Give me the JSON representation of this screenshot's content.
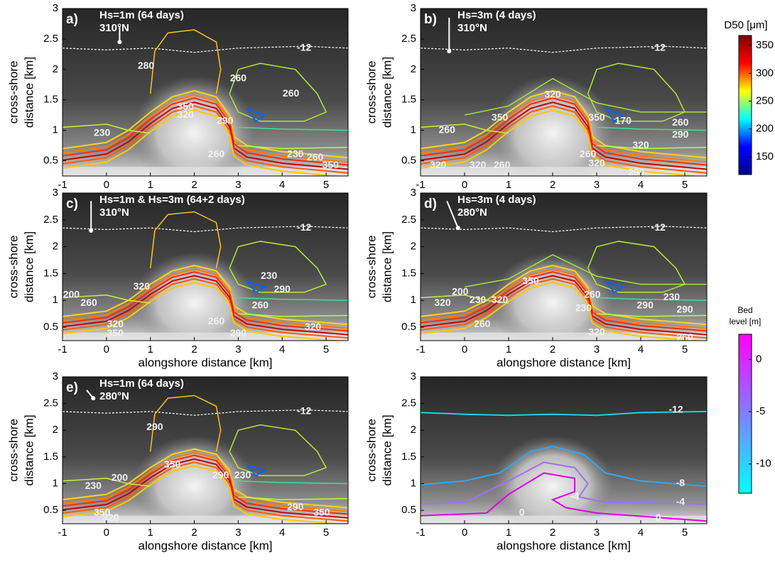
{
  "chart_data": {
    "type": "contour",
    "panels": [
      {
        "label": "a)",
        "title_lines": [
          "Hs=1m (64 days)",
          "310°N"
        ],
        "xlabel": "alongshore distance [km]",
        "ylabel": [
          "cross-shore",
          "distance [km]"
        ],
        "xlim": [
          -1,
          5.5
        ],
        "ylim": [
          0.25,
          3
        ],
        "xticks": [
          -1,
          0,
          1,
          2,
          3,
          4,
          5
        ],
        "yticks": [
          0.5,
          1,
          1.5,
          2,
          2.5,
          3
        ],
        "contour_labels": [
          -12,
          280,
          260,
          260,
          350,
          320,
          290,
          230,
          260,
          230,
          260,
          350
        ]
      },
      {
        "label": "b)",
        "title_lines": [
          "Hs=3m (4 days)",
          "310°N"
        ],
        "xlabel": "alongshore distance [km]",
        "ylabel": [
          "cross-shore",
          "distance [km]"
        ],
        "xlim": [
          -1,
          5.5
        ],
        "ylim": [
          0.25,
          3
        ],
        "xticks": [
          -1,
          0,
          1,
          2,
          3,
          4,
          5
        ],
        "yticks": [
          0.5,
          1,
          1.5,
          2,
          2.5,
          3
        ],
        "contour_labels": [
          -12,
          320,
          350,
          350,
          170,
          260,
          260,
          320,
          320,
          260,
          260,
          320,
          320,
          290,
          290
        ]
      },
      {
        "label": "c)",
        "title_lines": [
          "Hs=1m & Hs=3m (64+2 days)",
          "310°N"
        ],
        "xlabel": "alongshore distance [km]",
        "ylabel": [
          "cross-shore",
          "distance [km]"
        ],
        "xlim": [
          -1,
          5.5
        ],
        "ylim": [
          0.25,
          3
        ],
        "xticks": [
          -1,
          0,
          1,
          2,
          3,
          4,
          5
        ],
        "yticks": [
          0.5,
          1,
          1.5,
          2,
          2.5,
          3
        ],
        "contour_labels": [
          -12,
          320,
          230,
          290,
          260,
          260,
          290,
          320,
          320,
          350,
          260,
          200
        ]
      },
      {
        "label": "d)",
        "title_lines": [
          "Hs=3m (4 days)",
          "280°N"
        ],
        "xlabel": "alongshore distance [km]",
        "ylabel": [
          "cross-shore",
          "distance [km]"
        ],
        "xlim": [
          -1,
          5.5
        ],
        "ylim": [
          0.25,
          3
        ],
        "xticks": [
          -1,
          0,
          1,
          2,
          3,
          4,
          5
        ],
        "yticks": [
          0.5,
          1,
          1.5,
          2,
          2.5,
          3
        ],
        "contour_labels": [
          -12,
          350,
          200,
          230,
          320,
          320,
          260,
          230,
          290,
          230,
          290,
          320,
          260,
          260
        ]
      },
      {
        "label": "e)",
        "title_lines": [
          "Hs=1m (64 days)",
          "280°N"
        ],
        "xlabel": "alongshore distance [km]",
        "ylabel": [
          "cross-shore",
          "distance [km]"
        ],
        "xlim": [
          -1,
          5.5
        ],
        "ylim": [
          0.25,
          3
        ],
        "xticks": [
          -1,
          0,
          1,
          2,
          3,
          4,
          5
        ],
        "yticks": [
          0.5,
          1,
          1.5,
          2,
          2.5,
          3
        ],
        "contour_labels": [
          -12,
          290,
          350,
          290,
          230,
          200,
          230,
          350,
          320,
          290,
          350
        ]
      },
      {
        "xlabel": "alongshore distance [km]",
        "ylabel": [
          "cross-shore",
          "distance [km]"
        ],
        "xlim": [
          -1,
          5.5
        ],
        "ylim": [
          0.25,
          3
        ],
        "xticks": [
          -1,
          0,
          1,
          2,
          3,
          4,
          5
        ],
        "yticks": [
          0.5,
          1,
          1.5,
          2,
          2.5,
          3
        ],
        "contour_labels": [
          -12,
          -8,
          -4,
          -4,
          0,
          0
        ]
      }
    ],
    "colorbars": [
      {
        "title": [
          "D50 [μm]"
        ],
        "lim": [
          118,
          368
        ],
        "ticks": [
          150,
          200,
          250,
          300,
          350
        ],
        "colormap": [
          "#00008f",
          "#0000ff",
          "#00ffff",
          "#ffff00",
          "#ff0000",
          "#800000"
        ]
      },
      {
        "title": [
          "Bed",
          "level [m]"
        ],
        "lim": [
          -12.8,
          2.4
        ],
        "ticks": [
          -10,
          -5,
          0
        ],
        "colormap": [
          "#00ffff",
          "#ff00ff"
        ]
      }
    ]
  }
}
